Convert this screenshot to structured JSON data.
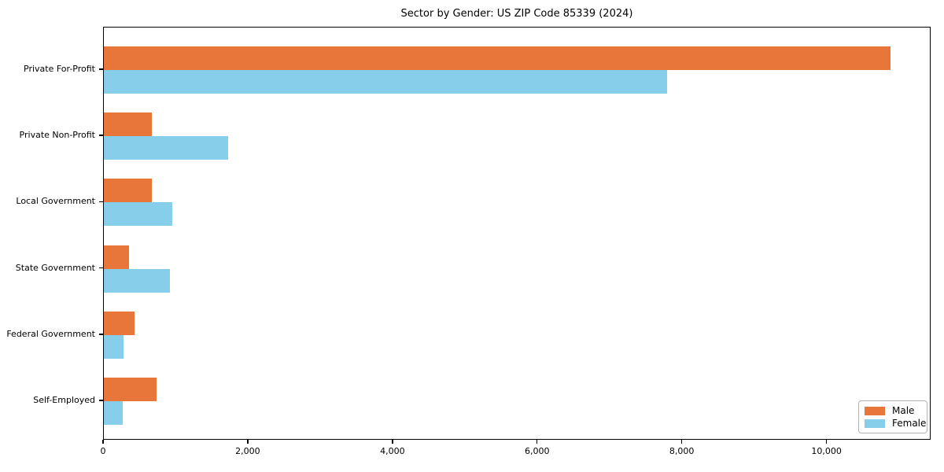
{
  "title": "Sector by Gender: US ZIP Code 85339 (2024)",
  "chart_data": {
    "type": "bar",
    "orientation": "horizontal",
    "title": "Sector by Gender: US ZIP Code 85339 (2024)",
    "categories": [
      "Private For-Profit",
      "Private Non-Profit",
      "Local Government",
      "State Government",
      "Federal Government",
      "Self-Employed"
    ],
    "series": [
      {
        "name": "Male",
        "color": "#e8763b",
        "values": [
          10900,
          660,
          660,
          350,
          420,
          730
        ]
      },
      {
        "name": "Female",
        "color": "#87ceeb",
        "values": [
          7800,
          1720,
          950,
          910,
          270,
          260
        ]
      }
    ],
    "xlabel": "",
    "ylabel": "",
    "xlim": [
      0,
      11440
    ],
    "xticks": [
      0,
      2000,
      4000,
      6000,
      8000,
      10000
    ],
    "xtick_labels": [
      "0",
      "2,000",
      "4,000",
      "6,000",
      "8,000",
      "10,000"
    ],
    "grid": false,
    "background": "#ffffff",
    "legend_position": "lower right"
  },
  "legend": {
    "items": [
      {
        "label": "Male"
      },
      {
        "label": "Female"
      }
    ]
  }
}
